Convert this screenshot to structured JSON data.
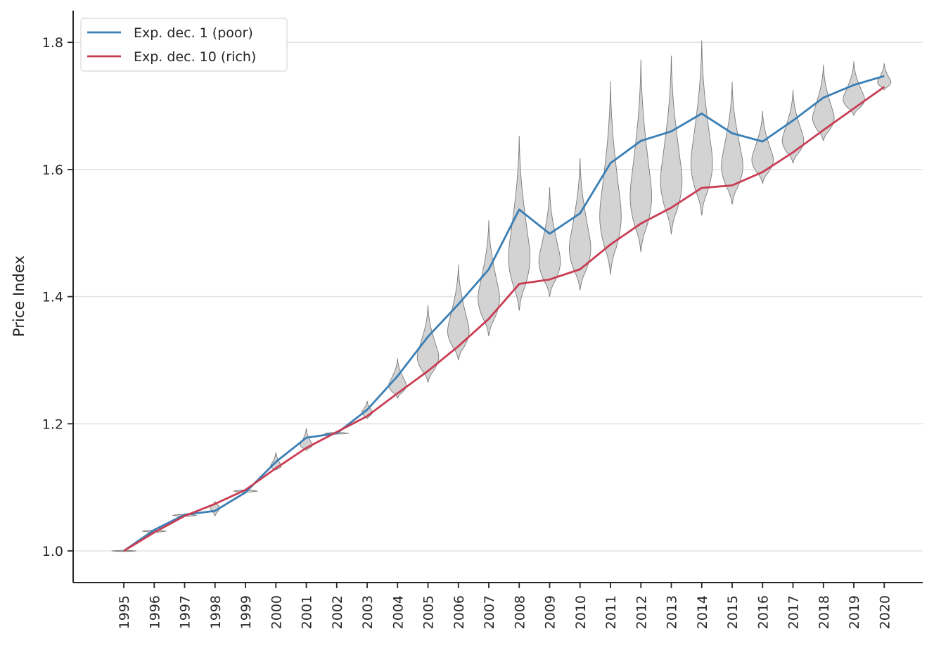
{
  "chart_data": {
    "type": "line",
    "title": "",
    "xlabel": "",
    "ylabel": "Price Index",
    "ylim": [
      0.95,
      1.85
    ],
    "yticks": [
      "1.0",
      "1.2",
      "1.4",
      "1.6",
      "1.8"
    ],
    "ytick_values": [
      1.0,
      1.2,
      1.4,
      1.6,
      1.8
    ],
    "grid": "horizontal",
    "legend_position": "top-left",
    "x": [
      "1995",
      "1996",
      "1997",
      "1998",
      "1999",
      "2000",
      "2001",
      "2002",
      "2003",
      "2004",
      "2005",
      "2006",
      "2007",
      "2008",
      "2009",
      "2010",
      "2011",
      "2012",
      "2013",
      "2014",
      "2015",
      "2016",
      "2017",
      "2018",
      "2019",
      "2020"
    ],
    "series": [
      {
        "name": "Exp. dec. 1 (poor)",
        "color": "#3a7fb5",
        "values": [
          1.0,
          1.033,
          1.057,
          1.063,
          1.092,
          1.14,
          1.178,
          1.185,
          1.222,
          1.275,
          1.337,
          1.388,
          1.443,
          1.537,
          1.499,
          1.531,
          1.61,
          1.645,
          1.66,
          1.688,
          1.657,
          1.644,
          1.677,
          1.713,
          1.733,
          1.747
        ]
      },
      {
        "name": "Exp. dec. 10 (rich)",
        "color": "#c93d53",
        "values": [
          1.0,
          1.029,
          1.055,
          1.074,
          1.096,
          1.13,
          1.162,
          1.187,
          1.212,
          1.248,
          1.283,
          1.322,
          1.365,
          1.42,
          1.427,
          1.443,
          1.482,
          1.515,
          1.54,
          1.571,
          1.575,
          1.596,
          1.627,
          1.662,
          1.696,
          1.73
        ]
      }
    ],
    "violins": [
      {
        "year": "1995",
        "min": 1.0,
        "max": 1.0,
        "mode": 1.0,
        "width": 0.4
      },
      {
        "year": "1996",
        "min": 1.028,
        "max": 1.035,
        "mode": 1.031,
        "width": 0.4
      },
      {
        "year": "1997",
        "min": 1.053,
        "max": 1.059,
        "mode": 1.056,
        "width": 0.4
      },
      {
        "year": "1998",
        "min": 1.055,
        "max": 1.078,
        "mode": 1.069,
        "width": 0.38
      },
      {
        "year": "1999",
        "min": 1.091,
        "max": 1.098,
        "mode": 1.094,
        "width": 0.4
      },
      {
        "year": "2000",
        "min": 1.127,
        "max": 1.155,
        "mode": 1.133,
        "width": 0.4
      },
      {
        "year": "2001",
        "min": 1.158,
        "max": 1.193,
        "mode": 1.166,
        "width": 0.38
      },
      {
        "year": "2002",
        "min": 1.183,
        "max": 1.188,
        "mode": 1.185,
        "width": 0.4
      },
      {
        "year": "2003",
        "min": 1.208,
        "max": 1.236,
        "mode": 1.218,
        "width": 0.38
      },
      {
        "year": "2004",
        "min": 1.24,
        "max": 1.303,
        "mode": 1.26,
        "width": 0.38
      },
      {
        "year": "2005",
        "min": 1.265,
        "max": 1.387,
        "mode": 1.305,
        "width": 0.4
      },
      {
        "year": "2006",
        "min": 1.3,
        "max": 1.45,
        "mode": 1.345,
        "width": 0.4
      },
      {
        "year": "2007",
        "min": 1.338,
        "max": 1.52,
        "mode": 1.397,
        "width": 0.4
      },
      {
        "year": "2008",
        "min": 1.378,
        "max": 1.653,
        "mode": 1.46,
        "width": 0.4
      },
      {
        "year": "2009",
        "min": 1.4,
        "max": 1.572,
        "mode": 1.455,
        "width": 0.4
      },
      {
        "year": "2010",
        "min": 1.41,
        "max": 1.618,
        "mode": 1.475,
        "width": 0.4
      },
      {
        "year": "2011",
        "min": 1.435,
        "max": 1.739,
        "mode": 1.525,
        "width": 0.4
      },
      {
        "year": "2012",
        "min": 1.47,
        "max": 1.773,
        "mode": 1.555,
        "width": 0.4
      },
      {
        "year": "2013",
        "min": 1.498,
        "max": 1.779,
        "mode": 1.58,
        "width": 0.4
      },
      {
        "year": "2014",
        "min": 1.528,
        "max": 1.803,
        "mode": 1.608,
        "width": 0.4
      },
      {
        "year": "2015",
        "min": 1.545,
        "max": 1.738,
        "mode": 1.605,
        "width": 0.4
      },
      {
        "year": "2016",
        "min": 1.578,
        "max": 1.692,
        "mode": 1.615,
        "width": 0.4
      },
      {
        "year": "2017",
        "min": 1.61,
        "max": 1.725,
        "mode": 1.645,
        "width": 0.4
      },
      {
        "year": "2018",
        "min": 1.645,
        "max": 1.765,
        "mode": 1.68,
        "width": 0.4
      },
      {
        "year": "2019",
        "min": 1.685,
        "max": 1.77,
        "mode": 1.71,
        "width": 0.4
      },
      {
        "year": "2020",
        "min": 1.725,
        "max": 1.767,
        "mode": 1.737,
        "width": 0.4
      }
    ],
    "violin_fill": "#d3d3d3",
    "violin_stroke": "#7a7a7a"
  }
}
